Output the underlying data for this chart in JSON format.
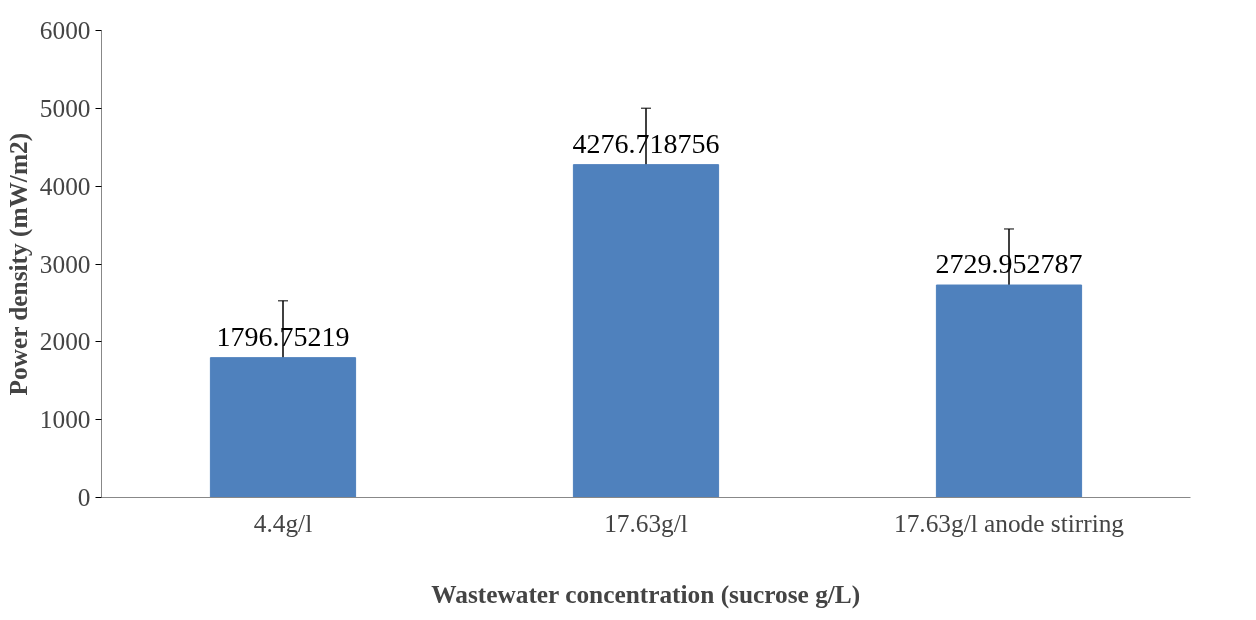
{
  "chart_data": {
    "type": "bar",
    "xlabel": "Wastewater concentration (sucrose g/L)",
    "ylabel": "Power density (mW/m2)",
    "categories": [
      "4.4g/l",
      "17.63g/l",
      "17.63g/l anode stirring"
    ],
    "values": [
      1796.75219,
      4276.718756,
      2729.952787
    ],
    "errors": [
      730,
      725,
      720
    ],
    "color": "#4f81bd",
    "ylim": [
      0,
      6000
    ],
    "yticks": [
      0,
      1000,
      2000,
      3000,
      4000,
      5000,
      6000
    ],
    "grid": false,
    "data_labels": true
  }
}
